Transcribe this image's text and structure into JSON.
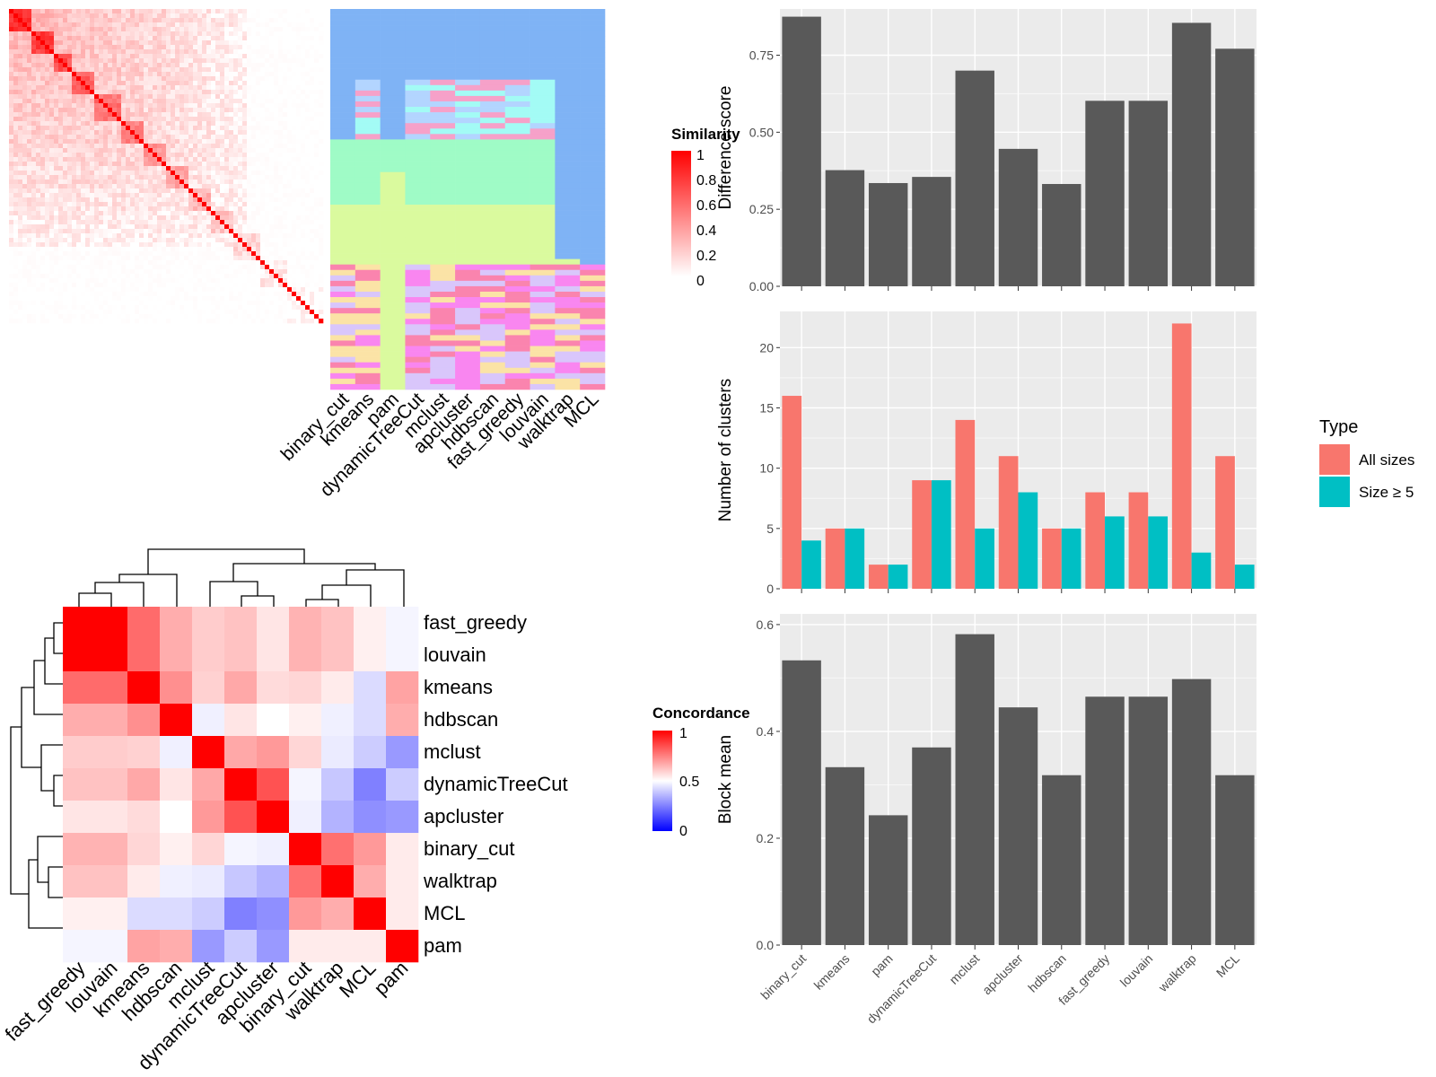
{
  "methods_order": [
    "binary_cut",
    "kmeans",
    "pam",
    "dynamicTreeCut",
    "mclust",
    "apcluster",
    "hdbscan",
    "fast_greedy",
    "louvain",
    "walktrap",
    "MCL"
  ],
  "similarity_legend": {
    "title": "Similarity",
    "ticks": [
      "1",
      "0.8",
      "0.6",
      "0.4",
      "0.2",
      "0"
    ]
  },
  "concordance_legend": {
    "title": "Concordance",
    "ticks": [
      "1",
      "0.5",
      "0"
    ]
  },
  "concordance_labels": [
    "fast_greedy",
    "louvain",
    "kmeans",
    "hdbscan",
    "mclust",
    "dynamicTreeCut",
    "apcluster",
    "binary_cut",
    "walktrap",
    "MCL",
    "pam"
  ],
  "cluster_palette": [
    "#7fb3f5",
    "#f6a1c9",
    "#b3d5ff",
    "#a3fbf5",
    "#9ffbc6",
    "#dafa9e",
    "#d9c6fb",
    "#fbe3a6",
    "#fa84ae",
    "#f986f0",
    "#f7c7d5"
  ],
  "chart_data": [
    {
      "type": "bar",
      "categories": [
        "binary_cut",
        "kmeans",
        "pam",
        "dynamicTreeCut",
        "mclust",
        "apcluster",
        "hdbscan",
        "fast_greedy",
        "louvain",
        "walktrap",
        "MCL"
      ],
      "values": [
        0.875,
        0.377,
        0.335,
        0.355,
        0.7,
        0.446,
        0.332,
        0.602,
        0.602,
        0.855,
        0.771
      ],
      "ylabel": "Difference score",
      "ylim": [
        0,
        0.9
      ],
      "ticks": [
        "0.00",
        "0.25",
        "0.50",
        "0.75"
      ],
      "color": "#595959"
    },
    {
      "type": "bar",
      "categories": [
        "binary_cut",
        "kmeans",
        "pam",
        "dynamicTreeCut",
        "mclust",
        "apcluster",
        "hdbscan",
        "fast_greedy",
        "louvain",
        "walktrap",
        "MCL"
      ],
      "series": [
        {
          "name": "All sizes",
          "values": [
            16,
            5,
            2,
            9,
            14,
            11,
            5,
            8,
            8,
            22,
            11
          ],
          "color": "#f8766d"
        },
        {
          "name": "Size ≥ 5",
          "values": [
            4,
            5,
            2,
            9,
            5,
            8,
            5,
            6,
            6,
            3,
            2
          ],
          "color": "#00bfc4"
        }
      ],
      "ylabel": "Number of clusters",
      "ylim": [
        0,
        23
      ],
      "ticks": [
        "0",
        "5",
        "10",
        "15",
        "20"
      ],
      "legend_title": "Type",
      "legend_position": "right"
    },
    {
      "type": "bar",
      "categories": [
        "binary_cut",
        "kmeans",
        "pam",
        "dynamicTreeCut",
        "mclust",
        "apcluster",
        "hdbscan",
        "fast_greedy",
        "louvain",
        "walktrap",
        "MCL"
      ],
      "values": [
        0.533,
        0.333,
        0.243,
        0.37,
        0.582,
        0.445,
        0.318,
        0.465,
        0.465,
        0.498,
        0.318
      ],
      "ylabel": "Block mean",
      "ylim": [
        0,
        0.62
      ],
      "ticks": [
        "0.0",
        "0.2",
        "0.4",
        "0.6"
      ],
      "color": "#595959"
    },
    {
      "type": "heatmap",
      "rows": [
        "fast_greedy",
        "louvain",
        "kmeans",
        "hdbscan",
        "mclust",
        "dynamicTreeCut",
        "apcluster",
        "binary_cut",
        "walktrap",
        "MCL",
        "pam"
      ],
      "cols": [
        "fast_greedy",
        "louvain",
        "kmeans",
        "hdbscan",
        "mclust",
        "dynamicTreeCut",
        "apcluster",
        "binary_cut",
        "walktrap",
        "MCL",
        "pam"
      ],
      "values": [
        [
          1.0,
          1.0,
          0.79,
          0.66,
          0.6,
          0.62,
          0.55,
          0.65,
          0.62,
          0.53,
          0.48
        ],
        [
          1.0,
          1.0,
          0.79,
          0.66,
          0.6,
          0.62,
          0.55,
          0.65,
          0.62,
          0.53,
          0.48
        ],
        [
          0.79,
          0.79,
          1.0,
          0.72,
          0.59,
          0.67,
          0.57,
          0.58,
          0.54,
          0.43,
          0.68
        ],
        [
          0.66,
          0.66,
          0.72,
          1.0,
          0.47,
          0.55,
          0.5,
          0.53,
          0.47,
          0.43,
          0.66
        ],
        [
          0.6,
          0.6,
          0.59,
          0.47,
          1.0,
          0.67,
          0.7,
          0.58,
          0.46,
          0.4,
          0.3
        ],
        [
          0.62,
          0.62,
          0.67,
          0.55,
          0.67,
          1.0,
          0.84,
          0.48,
          0.39,
          0.25,
          0.4
        ],
        [
          0.55,
          0.55,
          0.57,
          0.5,
          0.7,
          0.84,
          1.0,
          0.47,
          0.35,
          0.28,
          0.3
        ],
        [
          0.65,
          0.65,
          0.58,
          0.53,
          0.58,
          0.48,
          0.47,
          1.0,
          0.78,
          0.7,
          0.54
        ],
        [
          0.62,
          0.62,
          0.54,
          0.47,
          0.46,
          0.39,
          0.35,
          0.78,
          1.0,
          0.66,
          0.54
        ],
        [
          0.53,
          0.53,
          0.43,
          0.43,
          0.4,
          0.25,
          0.28,
          0.7,
          0.66,
          1.0,
          0.54
        ],
        [
          0.48,
          0.48,
          0.68,
          0.66,
          0.3,
          0.4,
          0.3,
          0.54,
          0.54,
          0.54,
          1.0
        ]
      ],
      "range": [
        0,
        1
      ]
    }
  ]
}
